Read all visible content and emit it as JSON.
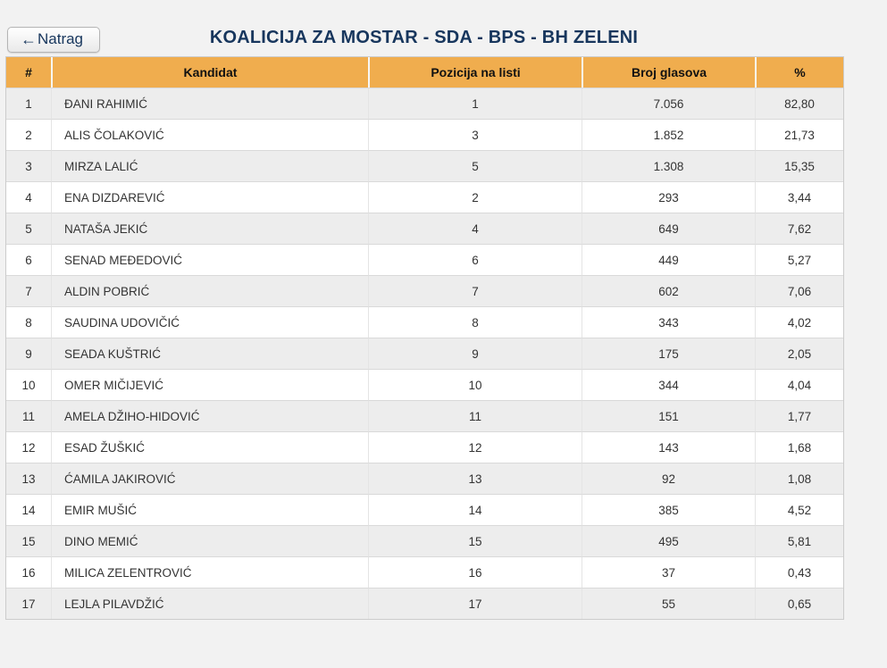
{
  "header": {
    "back_button": {
      "arrow_glyph": "←",
      "label": "Natrag"
    },
    "title": "KOALICIJA ZA MOSTAR - SDA - BPS - BH ZELENI"
  },
  "table": {
    "columns": [
      "#",
      "Kandidat",
      "Pozicija na listi",
      "Broj glasova",
      "%"
    ],
    "rows": [
      {
        "num": "1",
        "kandidat": "ĐANI RAHIMIĆ",
        "pozicija": "1",
        "broj_glasova": "7.056",
        "procenat": "82,80"
      },
      {
        "num": "2",
        "kandidat": "ALIS ČOLAKOVIĆ",
        "pozicija": "3",
        "broj_glasova": "1.852",
        "procenat": "21,73"
      },
      {
        "num": "3",
        "kandidat": "MIRZA LALIĆ",
        "pozicija": "5",
        "broj_glasova": "1.308",
        "procenat": "15,35"
      },
      {
        "num": "4",
        "kandidat": "ENA DIZDAREVIĆ",
        "pozicija": "2",
        "broj_glasova": "293",
        "procenat": "3,44"
      },
      {
        "num": "5",
        "kandidat": "NATAŠA JEKIĆ",
        "pozicija": "4",
        "broj_glasova": "649",
        "procenat": "7,62"
      },
      {
        "num": "6",
        "kandidat": "SENAD MEĐEDOVIĆ",
        "pozicija": "6",
        "broj_glasova": "449",
        "procenat": "5,27"
      },
      {
        "num": "7",
        "kandidat": "ALDIN POBRIĆ",
        "pozicija": "7",
        "broj_glasova": "602",
        "procenat": "7,06"
      },
      {
        "num": "8",
        "kandidat": "SAUDINA UDOVIČIĆ",
        "pozicija": "8",
        "broj_glasova": "343",
        "procenat": "4,02"
      },
      {
        "num": "9",
        "kandidat": "SEADA KUŠTRIĆ",
        "pozicija": "9",
        "broj_glasova": "175",
        "procenat": "2,05"
      },
      {
        "num": "10",
        "kandidat": "OMER MIČIJEVIĆ",
        "pozicija": "10",
        "broj_glasova": "344",
        "procenat": "4,04"
      },
      {
        "num": "11",
        "kandidat": "AMELA DŽIHO-HIDOVIĆ",
        "pozicija": "11",
        "broj_glasova": "151",
        "procenat": "1,77"
      },
      {
        "num": "12",
        "kandidat": "ESAD ŽUŠKIĆ",
        "pozicija": "12",
        "broj_glasova": "143",
        "procenat": "1,68"
      },
      {
        "num": "13",
        "kandidat": "ĆAMILA JAKIROVIĆ",
        "pozicija": "13",
        "broj_glasova": "92",
        "procenat": "1,08"
      },
      {
        "num": "14",
        "kandidat": "EMIR MUŠIĆ",
        "pozicija": "14",
        "broj_glasova": "385",
        "procenat": "4,52"
      },
      {
        "num": "15",
        "kandidat": "DINO MEMIĆ",
        "pozicija": "15",
        "broj_glasova": "495",
        "procenat": "5,81"
      },
      {
        "num": "16",
        "kandidat": "MILICA ZELENTROVIĆ",
        "pozicija": "16",
        "broj_glasova": "37",
        "procenat": "0,43"
      },
      {
        "num": "17",
        "kandidat": "LEJLA PILAVDŽIĆ",
        "pozicija": "17",
        "broj_glasova": "55",
        "procenat": "0,65"
      }
    ]
  },
  "colors": {
    "page_background": "#f2f2f2",
    "table_header_background": "#f0ad4e",
    "row_stripe": "#ededed",
    "title_text": "#17365d",
    "body_text": "#333333"
  }
}
